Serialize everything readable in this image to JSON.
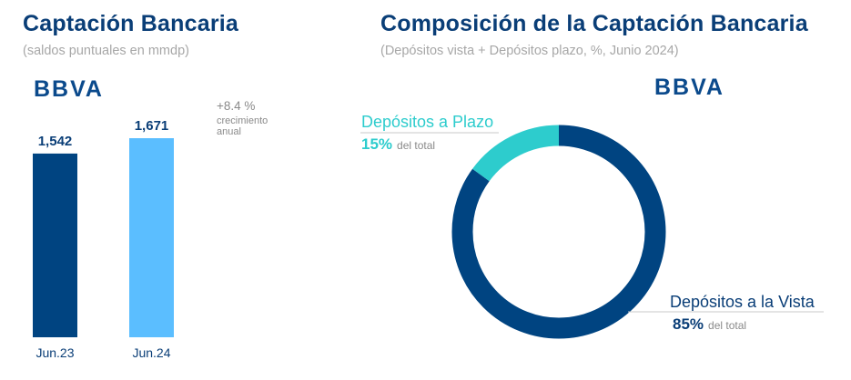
{
  "left_panel": {
    "title": "Captación Bancaria",
    "subtitle": "(saldos puntuales en mmdp)",
    "logo": "BBVA",
    "growth": {
      "value": "+8.4 %",
      "label": "crecimiento anual"
    }
  },
  "right_panel": {
    "title": "Composición de  la Captación Bancaria",
    "subtitle": "(Depósitos vista + Depósitos  plazo, %, Junio 2024)",
    "logo": "BBVA"
  },
  "colors": {
    "title": "#0a3e77",
    "subtitle": "#a7a7a7",
    "dark_blue": "#004481",
    "light_blue": "#5bbeff",
    "teal": "#2dcccd",
    "label_gray": "#8a8a8a"
  },
  "chart_data": [
    {
      "type": "bar",
      "categories": [
        "Jun.23",
        "Jun.24"
      ],
      "values": [
        1542,
        1671
      ],
      "value_labels": [
        "1,542",
        "1,671"
      ],
      "bar_colors": [
        "#004481",
        "#5bbeff"
      ],
      "ylim": [
        0,
        1671
      ],
      "xlabel": "",
      "ylabel": ""
    },
    {
      "type": "pie",
      "style": "donut",
      "slices": [
        {
          "name": "Depósitos a la Vista",
          "value": 85,
          "percent_label": "85%",
          "suffix": "del total",
          "color": "#004481"
        },
        {
          "name": "Depósitos a Plazo",
          "value": 15,
          "percent_label": "15%",
          "suffix": "del total",
          "color": "#2dcccd"
        }
      ]
    }
  ]
}
